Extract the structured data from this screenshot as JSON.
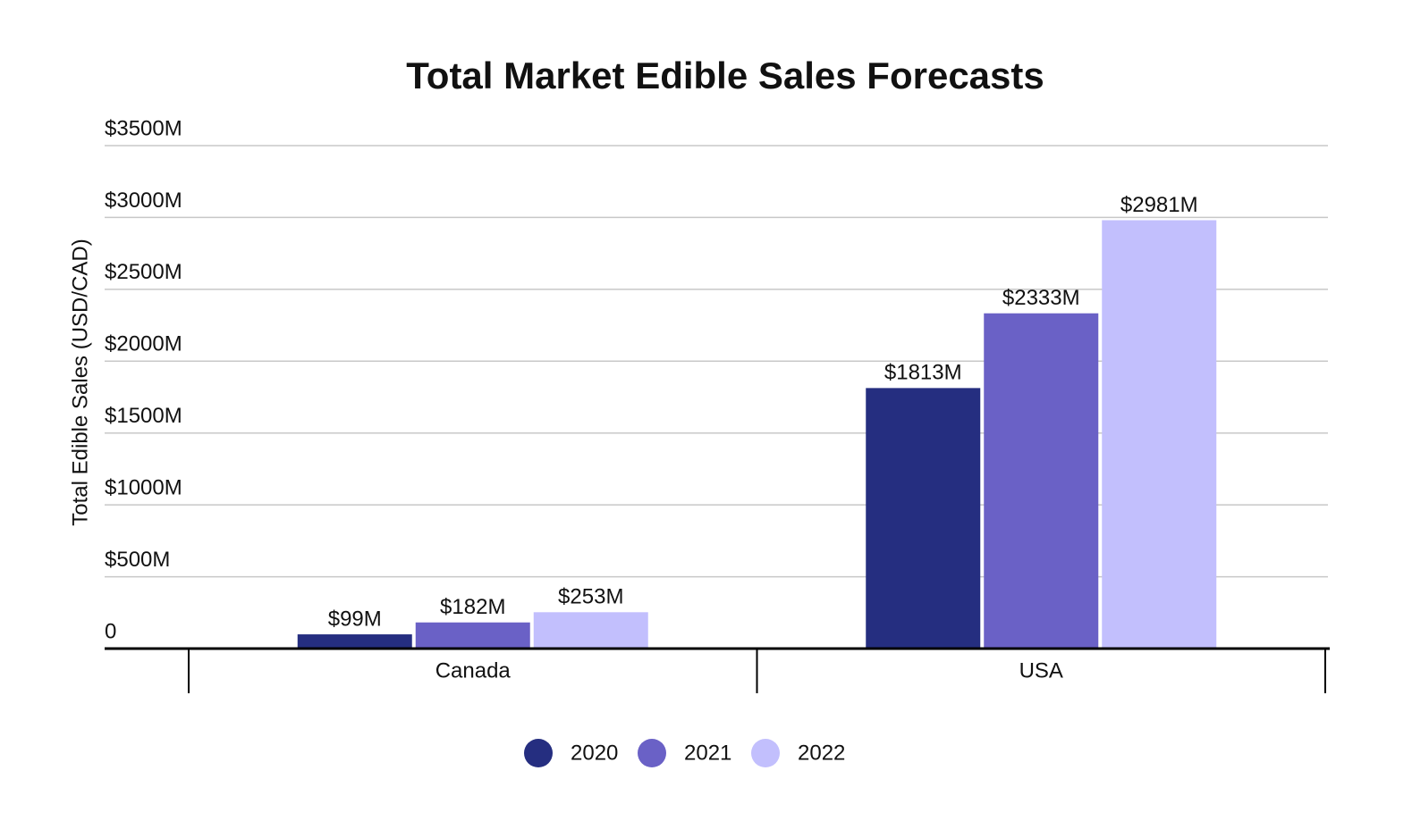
{
  "chart_data": {
    "type": "bar",
    "title": "Total Market Edible Sales Forecasts",
    "y_label": "Total Edible Sales (USD/CAD)",
    "categories": [
      "Canada",
      "USA"
    ],
    "series": [
      {
        "name": "2020",
        "color": "#252e80",
        "values": [
          99,
          1813
        ],
        "value_labels": [
          "$99M",
          "$1813M"
        ]
      },
      {
        "name": "2021",
        "color": "#6a61c6",
        "values": [
          182,
          2333
        ],
        "value_labels": [
          "$182M",
          "$2333M"
        ]
      },
      {
        "name": "2022",
        "color": "#c2bffd",
        "values": [
          253,
          2981
        ],
        "value_labels": [
          "$253M",
          "$2981M"
        ]
      }
    ],
    "ylim": [
      0,
      3500
    ],
    "yticks": [
      0,
      {
        "value": 500,
        "label": "$500M"
      },
      {
        "value": 1000,
        "label": "$1000M"
      },
      {
        "value": 1500,
        "label": "$1500M"
      },
      {
        "value": 2000,
        "label": "$2000M"
      },
      {
        "value": 2500,
        "label": "$2500M"
      },
      {
        "value": 3000,
        "label": "$3000M"
      },
      {
        "value": 3500,
        "label": "$3500M"
      }
    ],
    "grid": true,
    "legend": "bottom"
  }
}
